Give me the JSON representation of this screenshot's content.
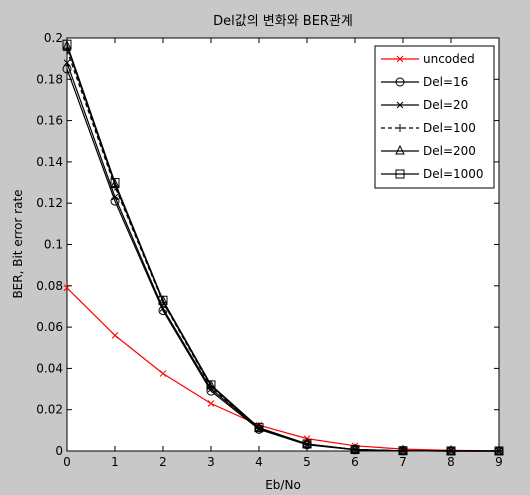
{
  "chart_data": {
    "type": "line",
    "title": "Del값의 변화와 BER관계",
    "xlabel": "Eb/No",
    "ylabel": "BER, Bit error rate",
    "xlim": [
      0,
      9
    ],
    "ylim": [
      0,
      0.2
    ],
    "xticks": [
      "0",
      "1",
      "2",
      "3",
      "4",
      "5",
      "6",
      "7",
      "8",
      "9"
    ],
    "yticks": [
      "0",
      "0.02",
      "0.04",
      "0.06",
      "0.08",
      "0.1",
      "0.12",
      "0.14",
      "0.16",
      "0.18",
      "0.2"
    ],
    "grid": false,
    "legend_position": "top-right",
    "x": [
      0,
      1,
      2,
      3,
      4,
      5,
      6,
      7,
      8,
      9
    ],
    "series": [
      {
        "name": "uncoded",
        "color": "#ff0000",
        "marker": "x",
        "dash": "solid",
        "values": [
          0.079,
          0.056,
          0.0375,
          0.023,
          0.0125,
          0.006,
          0.0025,
          0.0009,
          0.0003,
          0.0001
        ]
      },
      {
        "name": "Del=16",
        "color": "#000000",
        "marker": "o",
        "dash": "solid",
        "values": [
          0.185,
          0.121,
          0.068,
          0.029,
          0.0105,
          0.003,
          0.0006,
          0.0001,
          2e-05,
          0
        ]
      },
      {
        "name": "Del=20",
        "color": "#000000",
        "marker": "x",
        "dash": "solid",
        "values": [
          0.188,
          0.123,
          0.069,
          0.03,
          0.011,
          0.0032,
          0.0007,
          0.00012,
          2e-05,
          0
        ]
      },
      {
        "name": "Del=100",
        "color": "#000000",
        "marker": "+",
        "dash": "dashed",
        "values": [
          0.194,
          0.128,
          0.072,
          0.031,
          0.011,
          0.0033,
          0.0007,
          0.00012,
          2e-05,
          0
        ]
      },
      {
        "name": "Del=200",
        "color": "#000000",
        "marker": "^",
        "dash": "solid",
        "values": [
          0.196,
          0.129,
          0.0725,
          0.0315,
          0.0112,
          0.0034,
          0.0007,
          0.00012,
          2e-05,
          0
        ]
      },
      {
        "name": "Del=1000",
        "color": "#000000",
        "marker": "s",
        "dash": "solid",
        "values": [
          0.197,
          0.13,
          0.073,
          0.032,
          0.0113,
          0.0034,
          0.0007,
          0.00012,
          2e-05,
          0
        ]
      }
    ]
  }
}
